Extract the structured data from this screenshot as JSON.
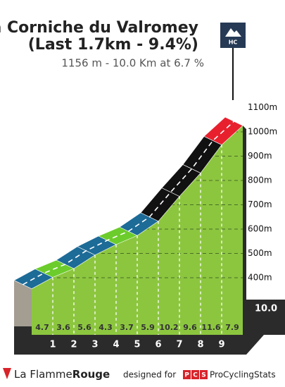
{
  "chart_data": {
    "type": "climb-profile",
    "title": "La Corniche du Valromey",
    "subtitle": "(Last 1.7km - 9.4%)",
    "info": "1156 m - 10.0 Km at 6.7 %",
    "category_badge": "HC",
    "end_elevation": 1156,
    "distance": {
      "value": 10,
      "label": "10.0"
    },
    "km_labels": [
      1,
      2,
      3,
      4,
      5,
      6,
      7,
      8,
      9
    ],
    "gradients": [
      4.7,
      3.6,
      5.6,
      4.3,
      3.7,
      5.9,
      10.2,
      9.6,
      11.6,
      7.9
    ],
    "colors": [
      "#1d6b97",
      "#6ccc2c",
      "#1d6b97",
      "#1d6b97",
      "#6ccc2c",
      "#1d6b97",
      "#111111",
      "#111111",
      "#111111",
      "#e8202e"
    ],
    "face_color": "#8cc63f",
    "ylim": [
      400,
      1200
    ],
    "yticks": [
      {
        "value": 400,
        "label": "400m"
      },
      {
        "value": 500,
        "label": "500m"
      },
      {
        "value": 600,
        "label": "600m"
      },
      {
        "value": 700,
        "label": "700m"
      },
      {
        "value": 800,
        "label": "800m"
      },
      {
        "value": 900,
        "label": "900m"
      },
      {
        "value": 1000,
        "label": "1000m"
      },
      {
        "value": 1100,
        "label": "1100m"
      }
    ],
    "grid": true
  },
  "footer": {
    "brand_left": "La Flamme",
    "brand_right": "Rouge",
    "designed_for": "designed for",
    "pcs_letters": [
      "P",
      "C",
      "S"
    ],
    "pcs_name": "ProCyclingStats"
  }
}
